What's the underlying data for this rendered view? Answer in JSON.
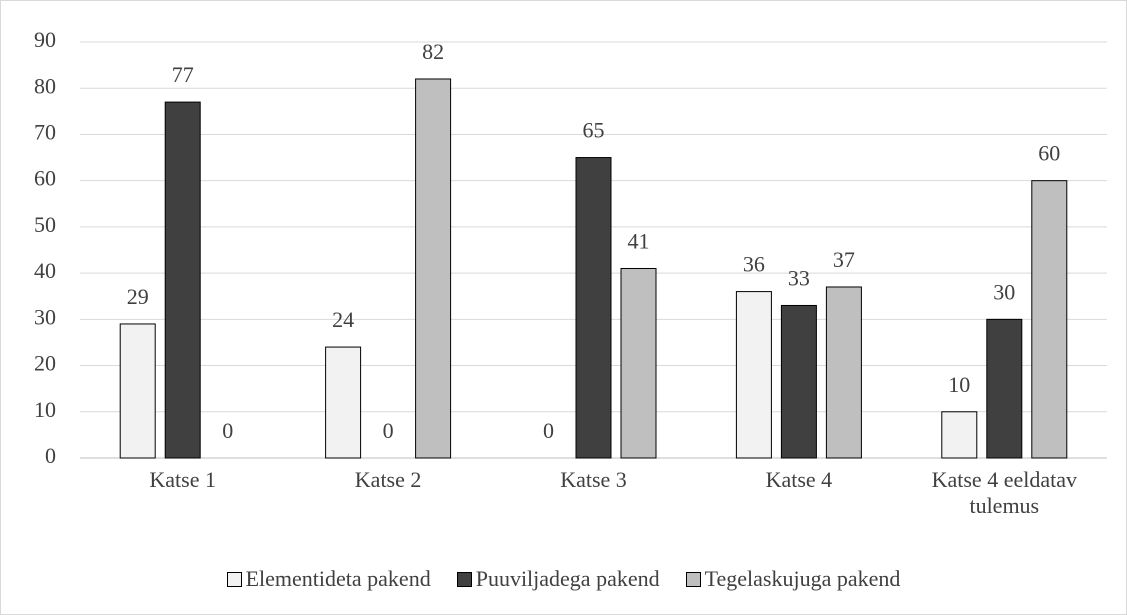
{
  "chart_data": {
    "type": "bar",
    "categories": [
      "Katse 1",
      "Katse 2",
      "Katse 3",
      "Katse 4",
      "Katse 4 eeldatav tulemus"
    ],
    "series": [
      {
        "name": "Elementideta pakend",
        "color": "#f2f2f2",
        "values": [
          29,
          24,
          0,
          36,
          10
        ]
      },
      {
        "name": "Puuviljadega pakend",
        "color": "#404040",
        "values": [
          77,
          0,
          65,
          33,
          30
        ]
      },
      {
        "name": "Tegelaskujuga pakend",
        "color": "#bfbfbf",
        "values": [
          0,
          82,
          41,
          37,
          60
        ]
      }
    ],
    "ylim": [
      0,
      90
    ],
    "yticks": [
      0,
      10,
      20,
      30,
      40,
      50,
      60,
      70,
      80,
      90
    ],
    "grid": true,
    "legend": "bottom"
  }
}
